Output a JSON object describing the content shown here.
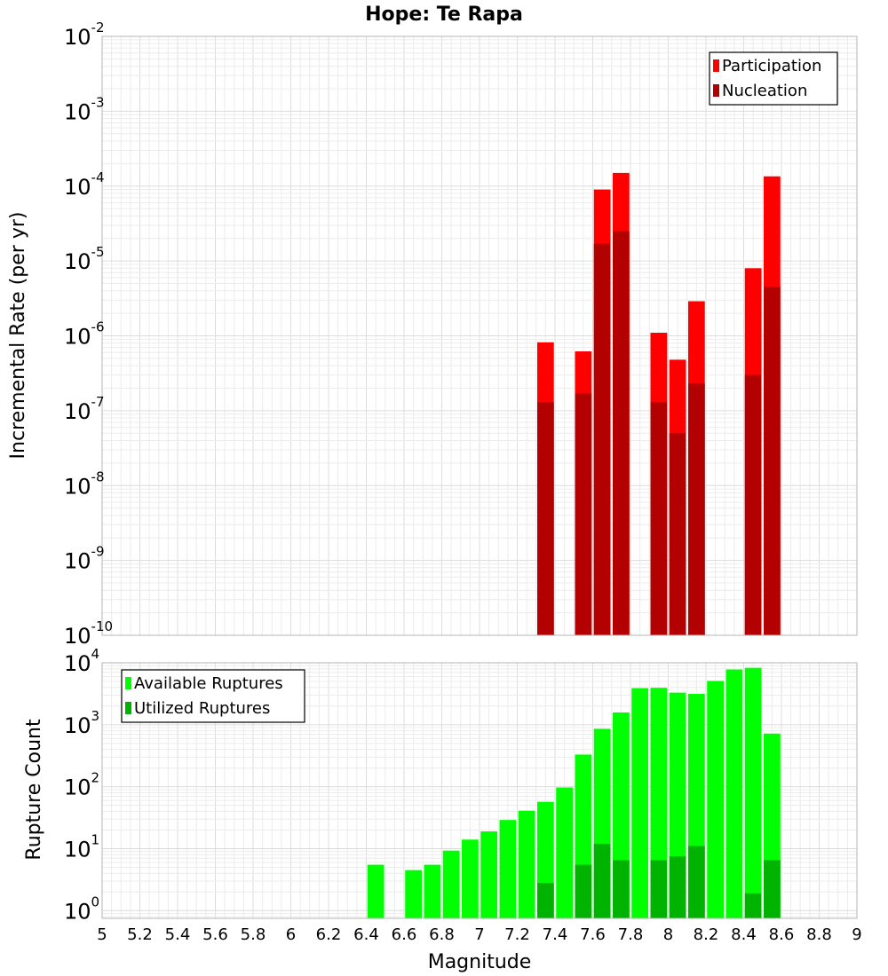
{
  "chart_data": [
    {
      "type": "bar",
      "title": "Hope: Te Rapa",
      "xlabel": "",
      "ylabel": "Incremental Rate (per yr)",
      "yscale": "log",
      "ylim": [
        1e-10,
        0.01
      ],
      "xlim": [
        5,
        9
      ],
      "grid": true,
      "legend_position": "top-right",
      "y_tick_labels": [
        {
          "base": "10",
          "exp": "-10"
        },
        {
          "base": "10",
          "exp": "-9"
        },
        {
          "base": "10",
          "exp": "-8"
        },
        {
          "base": "10",
          "exp": "-7"
        },
        {
          "base": "10",
          "exp": "-6"
        },
        {
          "base": "10",
          "exp": "-5"
        },
        {
          "base": "10",
          "exp": "-4"
        },
        {
          "base": "10",
          "exp": "-3"
        },
        {
          "base": "10",
          "exp": "-2"
        }
      ],
      "series": [
        {
          "name": "Participation",
          "color": "#ff0000",
          "x": [
            7.35,
            7.55,
            7.65,
            7.75,
            7.95,
            8.05,
            8.15,
            8.45,
            8.55
          ],
          "values": [
            8.2e-07,
            6.2e-07,
            9e-05,
            0.00015,
            1.1e-06,
            4.8e-07,
            2.9e-06,
            8e-06,
            0.000135
          ]
        },
        {
          "name": "Nucleation",
          "color": "#b30000",
          "x": [
            7.35,
            7.55,
            7.65,
            7.75,
            7.95,
            8.05,
            8.15,
            8.45,
            8.55
          ],
          "values": [
            1.3e-07,
            1.7e-07,
            1.7e-05,
            2.5e-05,
            1.3e-07,
            5e-08,
            2.3e-07,
            3e-07,
            4.5e-06
          ]
        }
      ]
    },
    {
      "type": "bar",
      "title": "",
      "xlabel": "Magnitude",
      "ylabel": "Rupture Count",
      "yscale": "log",
      "ylim": [
        0.75,
        10000
      ],
      "xlim": [
        5,
        9
      ],
      "grid": true,
      "legend_position": "top-left",
      "x_tick_labels": [
        "5",
        "5.2",
        "5.4",
        "5.6",
        "5.8",
        "6",
        "6.2",
        "6.4",
        "6.6",
        "6.8",
        "7",
        "7.2",
        "7.4",
        "7.6",
        "7.8",
        "8",
        "8.2",
        "8.4",
        "8.6",
        "8.8",
        "9"
      ],
      "y_tick_labels": [
        {
          "base": "10",
          "exp": "0"
        },
        {
          "base": "10",
          "exp": "1"
        },
        {
          "base": "10",
          "exp": "2"
        },
        {
          "base": "10",
          "exp": "3"
        },
        {
          "base": "10",
          "exp": "4"
        }
      ],
      "series": [
        {
          "name": "Available Ruptures",
          "color": "#00ff00",
          "x": [
            6.45,
            6.65,
            6.75,
            6.85,
            6.95,
            7.05,
            7.15,
            7.25,
            7.35,
            7.45,
            7.55,
            7.65,
            7.75,
            7.85,
            7.95,
            8.05,
            8.15,
            8.25,
            8.35,
            8.45,
            8.55
          ],
          "values": [
            5.5,
            4.5,
            5.5,
            9.3,
            14,
            19,
            29,
            41,
            57,
            97,
            330,
            860,
            1580,
            3900,
            3950,
            3300,
            3150,
            5100,
            7800,
            8300,
            720
          ]
        },
        {
          "name": "Utilized Ruptures",
          "color": "#00b300",
          "x": [
            7.35,
            7.55,
            7.65,
            7.75,
            7.95,
            8.05,
            8.15,
            8.45,
            8.55
          ],
          "values": [
            2.8,
            5.5,
            12,
            6.5,
            6.5,
            7.5,
            11,
            1.9,
            6.5
          ]
        }
      ]
    }
  ]
}
